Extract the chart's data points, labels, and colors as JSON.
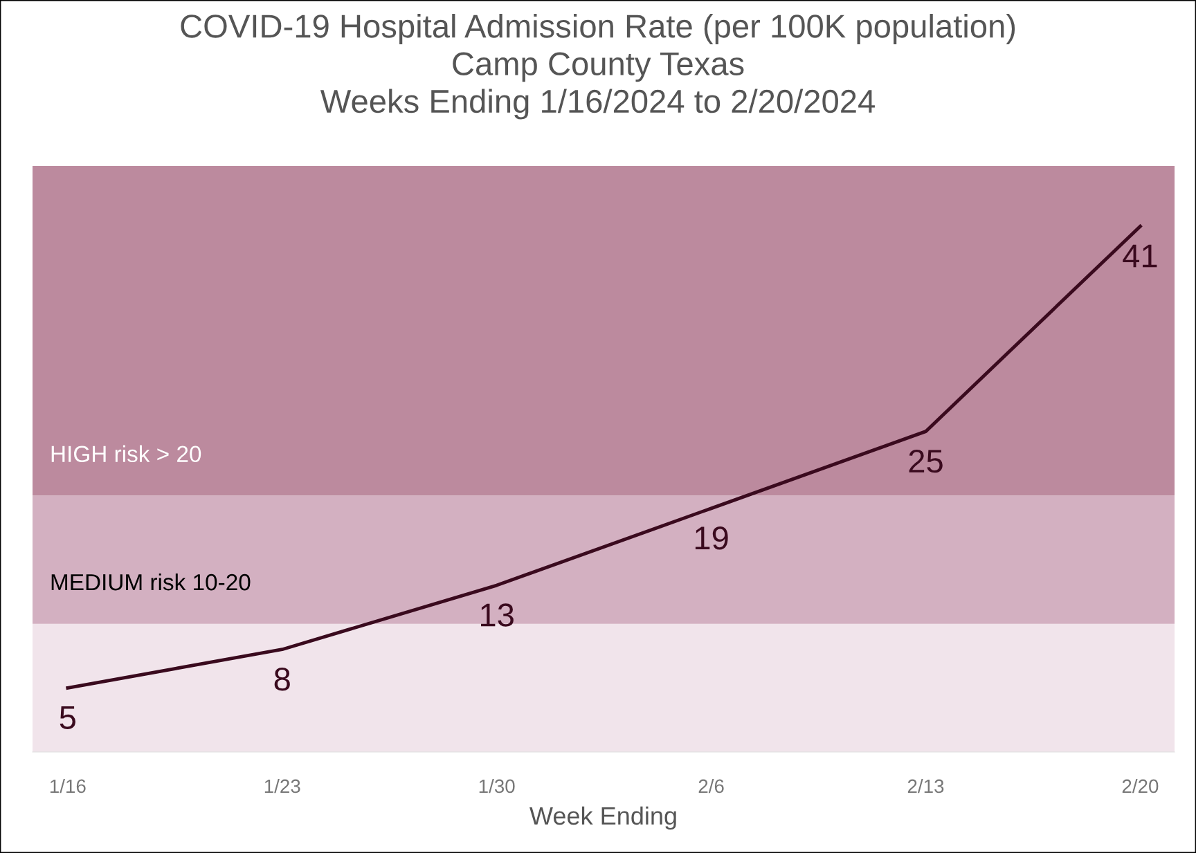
{
  "chart_data": {
    "type": "line",
    "title": "COVID-19 Hospital Admission Rate (per 100K population)\nCamp County Texas\nWeeks Ending 1/16/2024 to 2/20/2024",
    "xlabel": "Week Ending",
    "categories": [
      "1/16",
      "1/23",
      "1/30",
      "2/6",
      "2/13",
      "2/20"
    ],
    "series": [
      {
        "color": "#3a0a1e",
        "values": [
          5,
          8,
          13,
          19,
          25,
          41
        ]
      }
    ],
    "data_labels": true,
    "ylim": [
      0,
      45.7
    ],
    "tick_labels": "x",
    "grid": false,
    "legend": false,
    "marker": "none",
    "line_style": "solid",
    "bands": [
      {
        "axis": "y",
        "from": 0,
        "to": 10,
        "label": null,
        "color": "#f1e4eb"
      },
      {
        "axis": "y",
        "from": 10,
        "to": 20,
        "label": "MEDIUM risk 10-20",
        "color": "#d3b0c1"
      },
      {
        "axis": "y",
        "from": 20,
        "to": 45.7,
        "label": "HIGH risk > 20",
        "color": "#bc8a9e"
      }
    ]
  }
}
